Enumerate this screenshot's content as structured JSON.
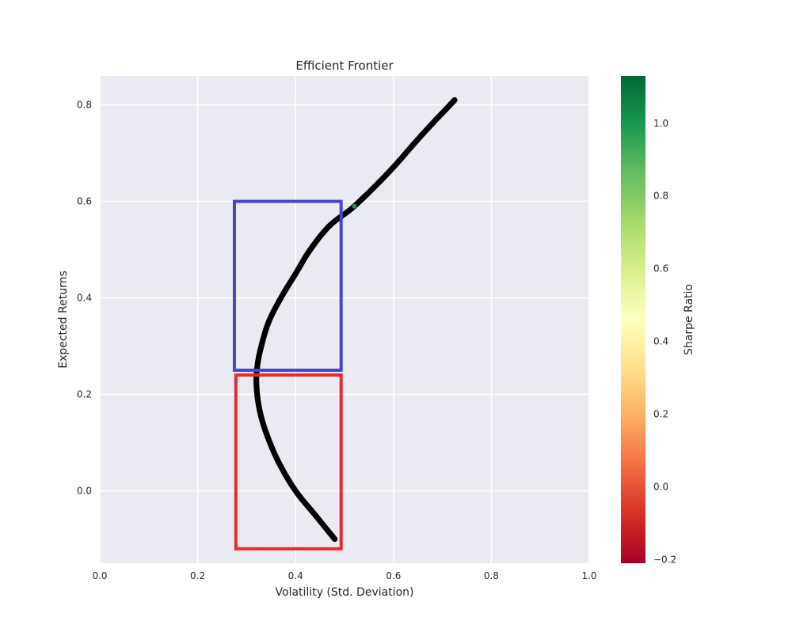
{
  "chart_data": {
    "type": "scatter",
    "title": "Efficient Frontier",
    "xlabel": "Volatility (Std. Deviation)",
    "ylabel": "Expected Returns",
    "xlim": [
      0.0,
      1.0
    ],
    "ylim": [
      -0.15,
      0.86
    ],
    "xticks": [
      0.0,
      0.2,
      0.4,
      0.6,
      0.8,
      1.0
    ],
    "xtick_labels": [
      "0.0",
      "0.2",
      "0.4",
      "0.6",
      "0.8",
      "1.0"
    ],
    "yticks": [
      0.0,
      0.2,
      0.4,
      0.6,
      0.8
    ],
    "ytick_labels": [
      "0.0",
      "0.2",
      "0.4",
      "0.6",
      "0.8"
    ],
    "grid": true,
    "background_color": "#eaeaf2",
    "point_color": "#000000",
    "highlight_point": {
      "x": 0.52,
      "y": 0.59,
      "color": "#1a9850"
    },
    "series": [
      {
        "points": [
          {
            "x": 0.48,
            "y": -0.1
          },
          {
            "x": 0.44,
            "y": -0.05
          },
          {
            "x": 0.4,
            "y": 0.0
          },
          {
            "x": 0.365,
            "y": 0.06
          },
          {
            "x": 0.34,
            "y": 0.12
          },
          {
            "x": 0.326,
            "y": 0.17
          },
          {
            "x": 0.32,
            "y": 0.22
          },
          {
            "x": 0.322,
            "y": 0.26
          },
          {
            "x": 0.33,
            "y": 0.3
          },
          {
            "x": 0.345,
            "y": 0.35
          },
          {
            "x": 0.37,
            "y": 0.4
          },
          {
            "x": 0.4,
            "y": 0.45
          },
          {
            "x": 0.43,
            "y": 0.5
          },
          {
            "x": 0.47,
            "y": 0.55
          },
          {
            "x": 0.52,
            "y": 0.59
          },
          {
            "x": 0.59,
            "y": 0.66
          },
          {
            "x": 0.66,
            "y": 0.74
          },
          {
            "x": 0.725,
            "y": 0.81
          }
        ]
      }
    ],
    "annotations": [
      {
        "type": "rectangle",
        "x0": 0.275,
        "x1": 0.493,
        "y0": 0.25,
        "y1": 0.6,
        "color": "#4646c8"
      },
      {
        "type": "rectangle",
        "x0": 0.278,
        "x1": 0.493,
        "y0": -0.12,
        "y1": 0.24,
        "color": "#e8282d"
      }
    ],
    "colorbar": {
      "label": "Sharpe Ratio",
      "min": -0.21,
      "max": 1.13,
      "ticks": [
        -0.2,
        0.0,
        0.2,
        0.4,
        0.6,
        0.8,
        1.0
      ],
      "tick_labels": [
        "−0.2",
        "0.0",
        "0.2",
        "0.4",
        "0.6",
        "0.8",
        "1.0"
      ],
      "colormap": "RdYlGn",
      "colors": [
        "#a50026",
        "#d73027",
        "#f46d43",
        "#fdae61",
        "#fee08b",
        "#ffffbf",
        "#d9ef8b",
        "#a6d96a",
        "#66bd63",
        "#1a9850",
        "#006837"
      ]
    }
  }
}
